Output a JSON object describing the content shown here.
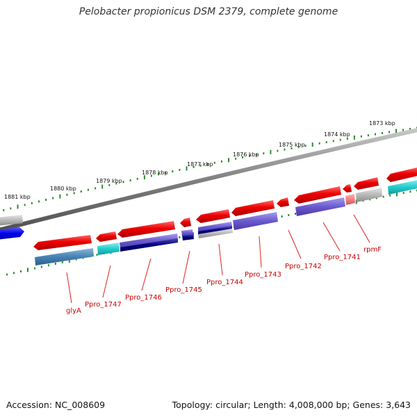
{
  "title": "Pelobacter propionicus DSM 2379, complete genome",
  "footer": {
    "accession": "Accession: NC_008609",
    "summary": "Topology: circular; Length: 4,008,000 bp; Genes: 3,643"
  },
  "scale": {
    "unit": "kbp",
    "ticks": [
      "1881 kbp",
      "1880 kbp",
      "1879 kbp",
      "1878 kbp",
      "1877 kbp",
      "1876 kbp",
      "1875 kbp",
      "1874 kbp",
      "1873 kbp"
    ]
  },
  "gene_labels": [
    "glyA",
    "Ppro_1747",
    "Ppro_1746",
    "Ppro_1745",
    "Ppro_1744",
    "Ppro_1743",
    "Ppro_1742",
    "Ppro_1741",
    "rpmF"
  ],
  "colors": {
    "backbone": "#808080",
    "tick": "#2e8b2e",
    "gene_label": "#cc0000",
    "cds": "#ee0000",
    "blue": "#0000ee",
    "cyan": "#22cccc",
    "grey": "#b8b8b8",
    "purple": "#6a5acd",
    "navy": "#000080",
    "steelblue": "#4682b4",
    "pink": "#f08080"
  }
}
